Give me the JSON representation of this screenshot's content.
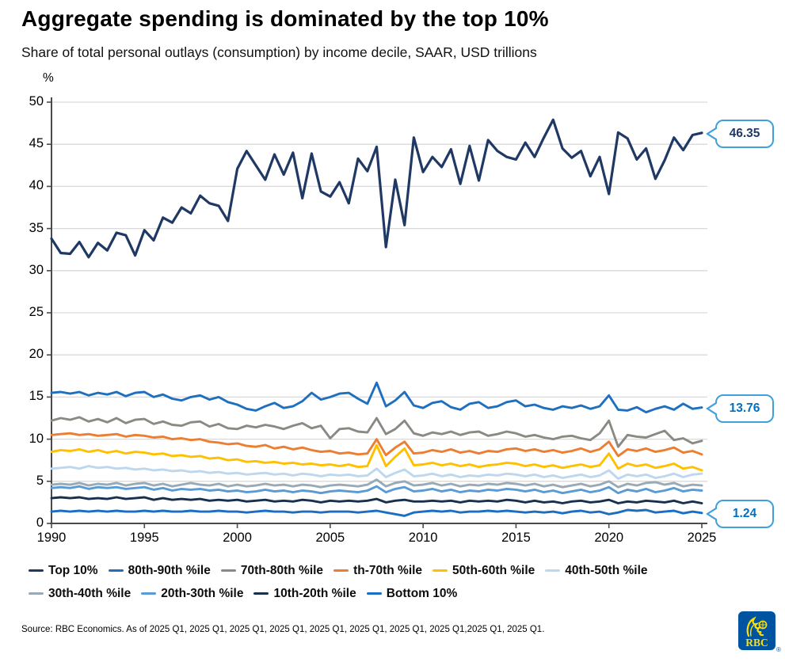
{
  "report": {
    "title": "Aggregate spending is dominated by the top 10%",
    "subtitle": "Share of total personal outlays (consumption) by income decile, SAAR, USD trillions"
  },
  "chart_data": {
    "type": "line",
    "title": "Aggregate spending is dominated by the top 10%",
    "unit_label": "%",
    "xlabel": "",
    "ylabel": "%",
    "xlim": [
      1990,
      2025
    ],
    "ylim": [
      0,
      50
    ],
    "grid": "horizontal",
    "legend_position": "bottom",
    "x_start": 1990,
    "x_step": 0.5,
    "x_ticks": [
      1990,
      1995,
      2000,
      2005,
      2010,
      2015,
      2020,
      2025
    ],
    "y_ticks": [
      0,
      5,
      10,
      15,
      20,
      25,
      30,
      35,
      40,
      45,
      50
    ],
    "series": [
      {
        "name": "Top 10%",
        "color": "#1F3864",
        "values": [
          33.8,
          32.1,
          32.0,
          33.4,
          31.6,
          33.3,
          32.4,
          34.5,
          34.2,
          31.8,
          34.8,
          33.6,
          36.3,
          35.7,
          37.5,
          36.8,
          38.9,
          38.0,
          37.7,
          35.9,
          42.1,
          44.2,
          42.5,
          40.8,
          43.8,
          41.4,
          44.0,
          38.6,
          43.9,
          39.4,
          38.8,
          40.5,
          38.0,
          43.3,
          41.8,
          44.7,
          32.8,
          40.8,
          35.4,
          45.8,
          41.7,
          43.5,
          42.3,
          44.4,
          40.3,
          44.8,
          40.7,
          45.5,
          44.2,
          43.5,
          43.2,
          45.2,
          43.5,
          45.8,
          47.9,
          44.5,
          43.4,
          44.2,
          41.2,
          43.5,
          39.1,
          46.4,
          45.7,
          43.2,
          44.5,
          40.9,
          43.1,
          45.8,
          44.3,
          46.1,
          46.35
        ]
      },
      {
        "name": "80th-90th %ile",
        "color": "#1F6FBF",
        "values": [
          15.5,
          15.6,
          15.4,
          15.6,
          15.2,
          15.5,
          15.3,
          15.6,
          15.1,
          15.5,
          15.6,
          15.0,
          15.3,
          14.8,
          14.6,
          15.0,
          15.2,
          14.7,
          15.0,
          14.4,
          14.1,
          13.6,
          13.4,
          13.9,
          14.3,
          13.7,
          13.9,
          14.5,
          15.5,
          14.7,
          15.0,
          15.4,
          15.5,
          14.8,
          14.2,
          16.7,
          13.9,
          14.6,
          15.6,
          14.0,
          13.7,
          14.3,
          14.5,
          13.8,
          13.5,
          14.2,
          14.4,
          13.7,
          13.9,
          14.4,
          14.6,
          13.9,
          14.1,
          13.7,
          13.5,
          13.9,
          13.7,
          14.0,
          13.6,
          13.9,
          15.2,
          13.5,
          13.4,
          13.8,
          13.2,
          13.6,
          13.9,
          13.5,
          14.2,
          13.6,
          13.76
        ]
      },
      {
        "name": "70th-80th %ile",
        "color": "#8A8A84",
        "values": [
          12.2,
          12.5,
          12.3,
          12.6,
          12.1,
          12.4,
          12.0,
          12.5,
          11.9,
          12.3,
          12.4,
          11.8,
          12.1,
          11.7,
          11.6,
          12.0,
          12.1,
          11.5,
          11.8,
          11.3,
          11.2,
          11.6,
          11.4,
          11.7,
          11.5,
          11.2,
          11.6,
          11.9,
          11.3,
          11.6,
          10.1,
          11.2,
          11.3,
          10.9,
          10.8,
          12.5,
          10.6,
          11.2,
          12.2,
          10.7,
          10.4,
          10.8,
          10.6,
          10.9,
          10.5,
          10.8,
          10.9,
          10.4,
          10.6,
          10.9,
          10.7,
          10.3,
          10.5,
          10.2,
          10.0,
          10.3,
          10.4,
          10.1,
          9.9,
          10.7,
          12.2,
          9.1,
          10.5,
          10.3,
          10.2,
          10.6,
          11.0,
          9.9,
          10.1,
          9.5,
          9.8
        ]
      },
      {
        "name": "th-70th %ile",
        "color": "#ED7D31",
        "values": [
          10.5,
          10.6,
          10.7,
          10.5,
          10.6,
          10.4,
          10.5,
          10.6,
          10.3,
          10.5,
          10.4,
          10.2,
          10.3,
          10.0,
          10.1,
          9.9,
          10.0,
          9.7,
          9.6,
          9.4,
          9.5,
          9.2,
          9.1,
          9.3,
          8.9,
          9.1,
          8.8,
          9.0,
          8.7,
          8.5,
          8.6,
          8.3,
          8.4,
          8.2,
          8.3,
          10.0,
          8.1,
          9.0,
          9.7,
          8.3,
          8.4,
          8.7,
          8.5,
          8.8,
          8.4,
          8.6,
          8.3,
          8.6,
          8.5,
          8.8,
          8.9,
          8.6,
          8.8,
          8.5,
          8.7,
          8.4,
          8.6,
          8.9,
          8.5,
          8.8,
          9.7,
          8.0,
          8.8,
          8.6,
          8.9,
          8.5,
          8.7,
          9.0,
          8.4,
          8.6,
          8.2
        ]
      },
      {
        "name": "50th-60th %ile",
        "color": "#FFC000",
        "values": [
          8.5,
          8.7,
          8.6,
          8.8,
          8.5,
          8.7,
          8.4,
          8.6,
          8.3,
          8.5,
          8.4,
          8.2,
          8.3,
          8.0,
          8.1,
          7.9,
          8.0,
          7.7,
          7.8,
          7.5,
          7.6,
          7.3,
          7.4,
          7.2,
          7.3,
          7.1,
          7.2,
          7.0,
          7.1,
          6.9,
          7.0,
          6.8,
          7.0,
          6.7,
          6.8,
          9.3,
          6.8,
          7.9,
          8.9,
          6.9,
          7.0,
          7.2,
          6.9,
          7.1,
          6.8,
          7.0,
          6.7,
          6.9,
          7.0,
          7.2,
          7.1,
          6.8,
          7.0,
          6.7,
          6.9,
          6.6,
          6.8,
          7.0,
          6.7,
          6.9,
          8.3,
          6.5,
          7.1,
          6.8,
          7.0,
          6.6,
          6.8,
          7.1,
          6.5,
          6.7,
          6.3
        ]
      },
      {
        "name": "40th-50th %ile",
        "color": "#BDD7EE",
        "values": [
          6.5,
          6.6,
          6.7,
          6.5,
          6.8,
          6.6,
          6.7,
          6.5,
          6.6,
          6.4,
          6.5,
          6.3,
          6.4,
          6.2,
          6.3,
          6.1,
          6.2,
          6.0,
          6.1,
          5.9,
          6.0,
          5.8,
          5.9,
          6.0,
          5.8,
          5.9,
          5.7,
          5.9,
          5.8,
          5.6,
          5.8,
          5.7,
          5.8,
          5.6,
          5.7,
          6.5,
          5.5,
          6.0,
          6.4,
          5.6,
          5.7,
          5.9,
          5.6,
          5.8,
          5.5,
          5.7,
          5.6,
          5.8,
          5.7,
          5.9,
          5.8,
          5.6,
          5.8,
          5.5,
          5.7,
          5.4,
          5.6,
          5.8,
          5.5,
          5.7,
          6.3,
          5.3,
          5.8,
          5.6,
          5.8,
          5.4,
          5.6,
          5.9,
          5.5,
          5.8,
          5.9
        ]
      },
      {
        "name": "30th-40th %ile",
        "color": "#97AAB6",
        "values": [
          4.6,
          4.7,
          4.6,
          4.8,
          4.5,
          4.7,
          4.6,
          4.8,
          4.5,
          4.7,
          4.8,
          4.5,
          4.7,
          4.4,
          4.6,
          4.8,
          4.6,
          4.5,
          4.7,
          4.4,
          4.6,
          4.4,
          4.5,
          4.7,
          4.5,
          4.6,
          4.4,
          4.6,
          4.5,
          4.3,
          4.5,
          4.6,
          4.5,
          4.4,
          4.6,
          5.2,
          4.4,
          4.8,
          5.0,
          4.5,
          4.6,
          4.8,
          4.5,
          4.7,
          4.4,
          4.6,
          4.5,
          4.7,
          4.6,
          4.8,
          4.7,
          4.5,
          4.7,
          4.4,
          4.6,
          4.3,
          4.5,
          4.7,
          4.4,
          4.6,
          5.0,
          4.3,
          4.7,
          4.5,
          4.8,
          4.9,
          4.6,
          4.8,
          4.4,
          4.6,
          4.5
        ]
      },
      {
        "name": "20th-30th %ile",
        "color": "#5B9BD5",
        "values": [
          4.2,
          4.3,
          4.2,
          4.4,
          4.1,
          4.3,
          4.2,
          4.3,
          4.1,
          4.2,
          4.3,
          4.0,
          4.2,
          3.9,
          4.1,
          4.0,
          4.1,
          3.9,
          4.0,
          3.8,
          3.9,
          3.7,
          3.8,
          4.0,
          3.8,
          3.9,
          3.7,
          3.9,
          3.8,
          3.6,
          3.8,
          3.9,
          3.8,
          3.7,
          3.9,
          4.4,
          3.7,
          4.1,
          4.3,
          3.8,
          3.9,
          4.1,
          3.8,
          4.0,
          3.7,
          3.9,
          3.8,
          4.0,
          3.9,
          4.1,
          4.0,
          3.8,
          4.0,
          3.7,
          3.9,
          3.6,
          3.8,
          4.0,
          3.7,
          3.9,
          4.3,
          3.6,
          4.0,
          3.8,
          4.1,
          3.7,
          3.9,
          4.2,
          3.8,
          4.0,
          3.9
        ]
      },
      {
        "name": "10th-20th %ile",
        "color": "#17304F",
        "values": [
          3.0,
          3.1,
          3.0,
          3.1,
          2.9,
          3.0,
          2.9,
          3.1,
          2.9,
          3.0,
          3.1,
          2.8,
          3.0,
          2.8,
          2.9,
          2.8,
          2.9,
          2.7,
          2.8,
          2.7,
          2.8,
          2.6,
          2.7,
          2.8,
          2.6,
          2.7,
          2.6,
          2.8,
          2.7,
          2.5,
          2.7,
          2.6,
          2.7,
          2.6,
          2.7,
          2.9,
          2.5,
          2.7,
          2.8,
          2.6,
          2.6,
          2.7,
          2.6,
          2.7,
          2.5,
          2.7,
          2.6,
          2.7,
          2.6,
          2.8,
          2.7,
          2.5,
          2.7,
          2.5,
          2.6,
          2.4,
          2.6,
          2.7,
          2.5,
          2.6,
          2.8,
          2.4,
          2.6,
          2.5,
          2.7,
          2.6,
          2.5,
          2.7,
          2.4,
          2.6,
          2.4
        ]
      },
      {
        "name": "Bottom 10%",
        "color": "#1B6EC2",
        "values": [
          1.4,
          1.5,
          1.4,
          1.5,
          1.4,
          1.5,
          1.4,
          1.5,
          1.4,
          1.4,
          1.5,
          1.4,
          1.5,
          1.4,
          1.4,
          1.5,
          1.4,
          1.4,
          1.5,
          1.4,
          1.4,
          1.3,
          1.4,
          1.5,
          1.4,
          1.4,
          1.3,
          1.4,
          1.4,
          1.3,
          1.4,
          1.4,
          1.4,
          1.3,
          1.4,
          1.5,
          1.3,
          1.1,
          0.9,
          1.3,
          1.4,
          1.5,
          1.4,
          1.5,
          1.3,
          1.4,
          1.4,
          1.5,
          1.4,
          1.5,
          1.4,
          1.3,
          1.4,
          1.3,
          1.4,
          1.2,
          1.4,
          1.5,
          1.3,
          1.4,
          1.1,
          1.3,
          1.6,
          1.5,
          1.6,
          1.3,
          1.4,
          1.5,
          1.2,
          1.4,
          1.24
        ]
      }
    ],
    "callouts": [
      {
        "series": "Top 10%",
        "value": "46.35",
        "numeric": 46.35,
        "text_color": "#1F3864"
      },
      {
        "series": "80th-90th %ile",
        "value": "13.76",
        "numeric": 13.76,
        "text_color": "#0070C0"
      },
      {
        "series": "Bottom 10%",
        "value": "1.24",
        "numeric": 1.24,
        "text_color": "#0070C0"
      }
    ],
    "colors": {
      "gridline": "#D9D9D9",
      "axis": "#4a4a4a",
      "callout_border": "#3FA0DC"
    }
  },
  "footer": {
    "source": "Source: RBC Economics. As of 2025 Q1, 2025 Q1, 2025 Q1, 2025 Q1, 2025 Q1, 2025 Q1, 2025 Q1, 2025 Q1,2025 Q1, 2025 Q1.",
    "logo_text": "RBC",
    "registered_mark": "®"
  }
}
